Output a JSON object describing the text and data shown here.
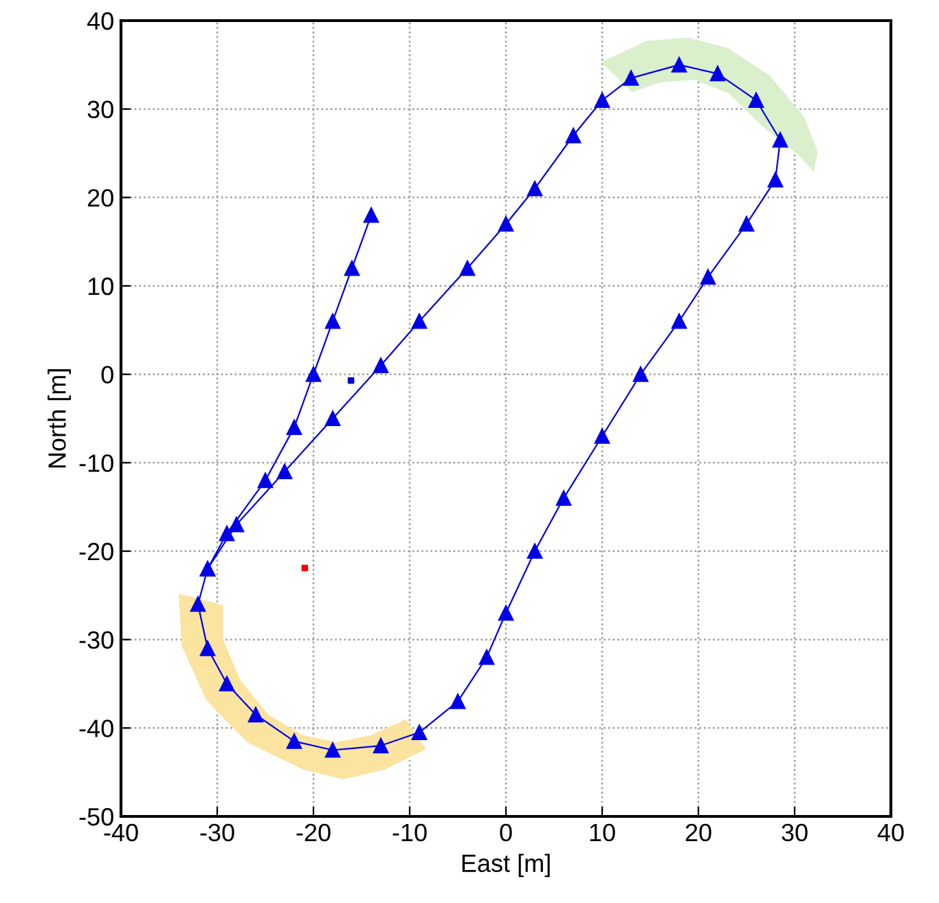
{
  "chart_data": {
    "type": "line",
    "xlabel": "East [m]",
    "ylabel": "North [m]",
    "xlim": [
      -40,
      40
    ],
    "xticks": [
      -40,
      -30,
      -20,
      -10,
      0,
      10,
      20,
      30,
      40
    ],
    "ylim": [
      -50,
      40
    ],
    "yticks": [
      -50,
      -40,
      -30,
      -20,
      -10,
      0,
      10,
      20,
      30,
      40
    ],
    "grid": true,
    "series": [
      {
        "type": "area",
        "color": "#fbe3a0",
        "x": [
          -34,
          -33.7,
          -31.1,
          -26.9,
          -21.1,
          -16.9,
          -12.6,
          -8.3,
          -10.4,
          -14,
          -17.6,
          -21.1,
          -24.7,
          -27.6,
          -29.4,
          -29.4
        ],
        "values": [
          -24.8,
          -30.7,
          -36.9,
          -41.6,
          -44.7,
          -45.8,
          -44.7,
          -42.4,
          -39.0,
          -40.8,
          -41.6,
          -40.8,
          -38.5,
          -34.6,
          -30,
          -26.1
        ]
      },
      {
        "type": "area",
        "color": "#daefcc",
        "x": [
          9.9,
          14.6,
          18.9,
          23.1,
          27.4,
          31,
          32.4,
          32,
          30.3,
          26.7,
          23.1,
          19.6,
          16,
          13.1
        ],
        "values": [
          35.3,
          37.7,
          38.1,
          36.9,
          33.8,
          29.1,
          25.2,
          22.9,
          24.9,
          28,
          31.8,
          33.3,
          33,
          31.9
        ]
      },
      {
        "color": "#0000e6",
        "marker": "triangle",
        "line_style": "solid",
        "x": [
          -14,
          -16,
          -18,
          -20,
          -22,
          -25,
          -29,
          -31,
          -32,
          -31,
          -29,
          -26,
          -22,
          -18,
          -13,
          -9,
          -5,
          -2,
          0,
          3,
          6,
          10,
          14,
          18,
          21,
          25,
          28,
          28.5,
          26,
          22,
          18,
          13,
          10,
          7,
          3,
          0,
          -4,
          -9,
          -13,
          -18,
          -23,
          -28,
          -31
        ],
        "values": [
          18,
          12,
          6,
          0,
          -6,
          -12,
          -18,
          -22,
          -26,
          -31,
          -35,
          -38.5,
          -41.5,
          -42.5,
          -42,
          -40.5,
          -37,
          -32,
          -27,
          -20,
          -14,
          -7,
          0,
          6,
          11,
          17,
          22,
          26.5,
          31,
          34,
          35,
          33.5,
          31,
          27,
          21,
          17,
          12,
          6,
          1,
          -5,
          -11,
          -17,
          -22
        ]
      },
      {
        "type": "scatter",
        "color": "#0000cc",
        "marker": "square",
        "x": [
          -16.1
        ],
        "values": [
          -0.7
        ]
      },
      {
        "type": "scatter",
        "color": "#ff0000",
        "marker": "square",
        "x": [
          -20.9
        ],
        "values": [
          -21.9
        ]
      }
    ]
  }
}
